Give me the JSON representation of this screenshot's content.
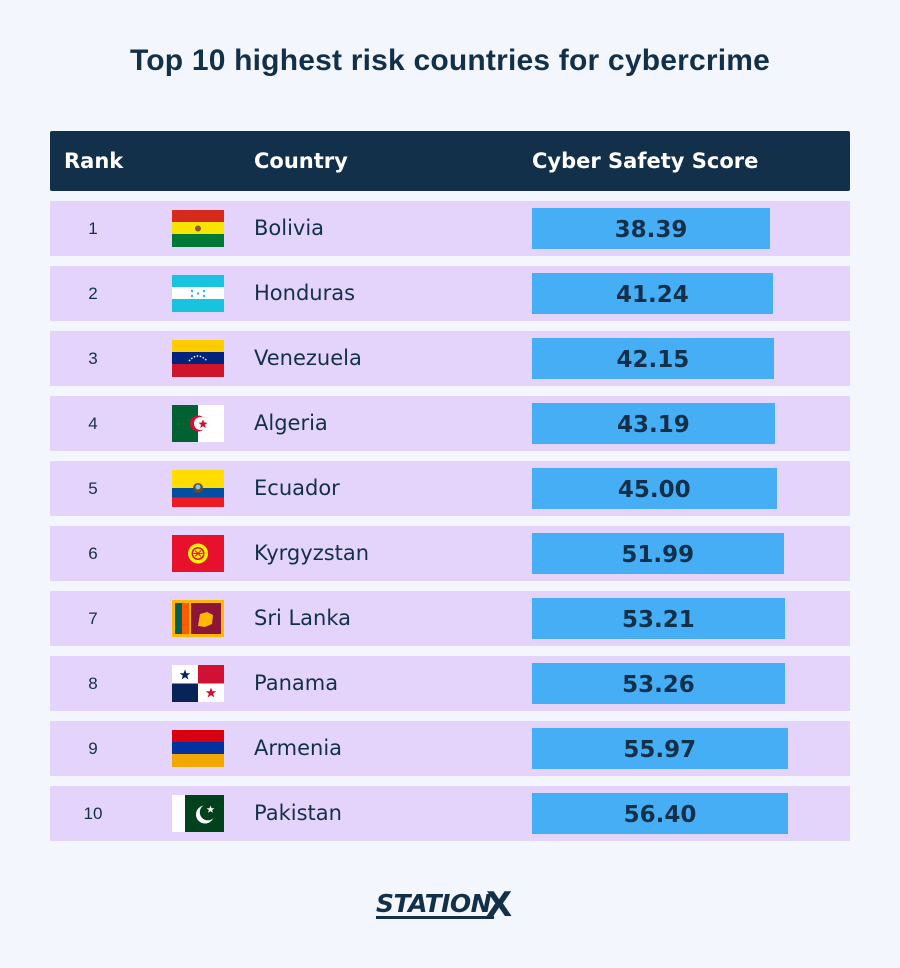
{
  "title": "Top 10 highest risk countries for cybercrime",
  "headers": {
    "rank": "Rank",
    "country": "Country",
    "score": "Cyber Safety Score"
  },
  "brand": {
    "logo_text": "STATION",
    "logo_x": "X",
    "color": "#13304a"
  },
  "colors": {
    "header_bg": "#13304a",
    "row_bg": "#e4d4fb",
    "bar": "#45aef5",
    "background": "#f3f7fd"
  },
  "chart_data": {
    "type": "bar",
    "title": "Top 10 highest risk countries for cybercrime",
    "categories": [
      "Bolivia",
      "Honduras",
      "Venezuela",
      "Algeria",
      "Ecuador",
      "Kyrgyzstan",
      "Sri Lanka",
      "Panama",
      "Armenia",
      "Pakistan"
    ],
    "series": [
      {
        "values": [
          38.39,
          41.24,
          42.15,
          43.19,
          45.0,
          51.99,
          53.21,
          53.26,
          55.97,
          56.4
        ]
      }
    ],
    "rows": [
      {
        "rank": "1",
        "country": "Bolivia",
        "score": "38.39",
        "flag": "bolivia-flag"
      },
      {
        "rank": "2",
        "country": "Honduras",
        "score": "41.24",
        "flag": "honduras-flag"
      },
      {
        "rank": "3",
        "country": "Venezuela",
        "score": "42.15",
        "flag": "venezuela-flag"
      },
      {
        "rank": "4",
        "country": "Algeria",
        "score": "43.19",
        "flag": "algeria-flag"
      },
      {
        "rank": "5",
        "country": "Ecuador",
        "score": "45.00",
        "flag": "ecuador-flag"
      },
      {
        "rank": "6",
        "country": "Kyrgyzstan",
        "score": "51.99",
        "flag": "kyrgyzstan-flag"
      },
      {
        "rank": "7",
        "country": "Sri Lanka",
        "score": "53.21",
        "flag": "sri-lanka-flag"
      },
      {
        "rank": "8",
        "country": "Panama",
        "score": "53.26",
        "flag": "panama-flag"
      },
      {
        "rank": "9",
        "country": "Armenia",
        "score": "55.97",
        "flag": "armenia-flag"
      },
      {
        "rank": "10",
        "country": "Pakistan",
        "score": "56.40",
        "flag": "pakistan-flag"
      }
    ]
  }
}
